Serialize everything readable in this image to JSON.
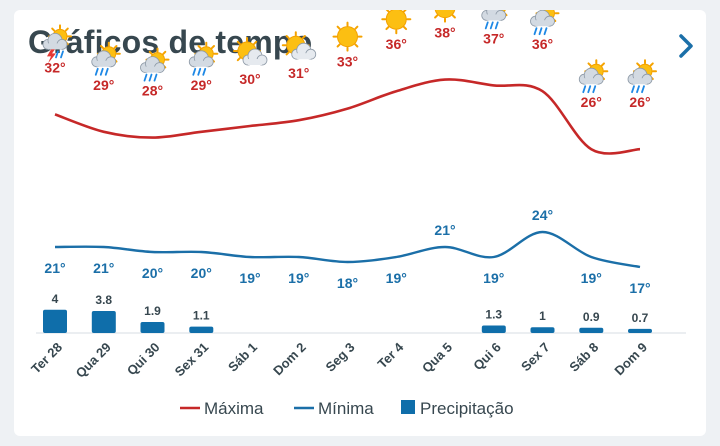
{
  "header": {
    "title": "Gráficos de tempo",
    "next_icon": "chevron-right-icon"
  },
  "chart_data": {
    "type": "line",
    "days": [
      "Ter 28",
      "Qua 29",
      "Qui 30",
      "Sex 31",
      "Sáb 1",
      "Dom 2",
      "Seg 3",
      "Ter 4",
      "Qua 5",
      "Qui 6",
      "Sex 7",
      "Sáb 8",
      "Dom 9"
    ],
    "icons": [
      "storm",
      "rain",
      "rain",
      "rain",
      "sun-cloud",
      "sun-cloud",
      "sun",
      "sun",
      "sun",
      "rain",
      "rain",
      "rain",
      "rain"
    ],
    "series": [
      {
        "name": "Máxima",
        "unit": "°",
        "color": "#c62828",
        "values": [
          32,
          29,
          28,
          29,
          30,
          31,
          33,
          36,
          38,
          37,
          36,
          26,
          26
        ]
      },
      {
        "name": "Mínima",
        "unit": "°",
        "color": "#1b6fa8",
        "values": [
          21,
          21,
          20,
          20,
          19,
          19,
          18,
          19,
          21,
          19,
          24,
          19,
          17
        ]
      },
      {
        "name": "Precipitação",
        "type": "bar",
        "color": "#0f6eaa",
        "values": [
          4,
          3.8,
          1.9,
          1.1,
          null,
          null,
          null,
          null,
          null,
          1.3,
          1,
          0.9,
          0.7
        ]
      }
    ],
    "legend": [
      "Máxima",
      "Mínima",
      "Precipitação"
    ],
    "legend_position": "bottom"
  }
}
